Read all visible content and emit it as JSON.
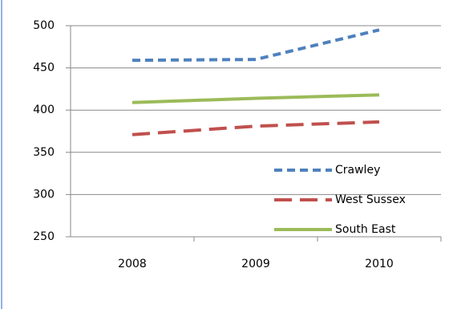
{
  "chart_data": {
    "type": "line",
    "categories": [
      "2008",
      "2009",
      "2010"
    ],
    "series": [
      {
        "name": "Crawley",
        "color": "#4f81bd",
        "dash": "10,6",
        "values": [
          459,
          460,
          495
        ]
      },
      {
        "name": "West Sussex",
        "color": "#c0504d",
        "dash": "22,10",
        "values": [
          371,
          381,
          386
        ]
      },
      {
        "name": "South East",
        "color": "#9bbb59",
        "dash": "",
        "values": [
          409,
          414,
          418
        ]
      }
    ],
    "ylim": [
      250,
      500
    ],
    "yticks": [
      250,
      300,
      350,
      400,
      450,
      500
    ],
    "grid": true,
    "legend": "right"
  }
}
